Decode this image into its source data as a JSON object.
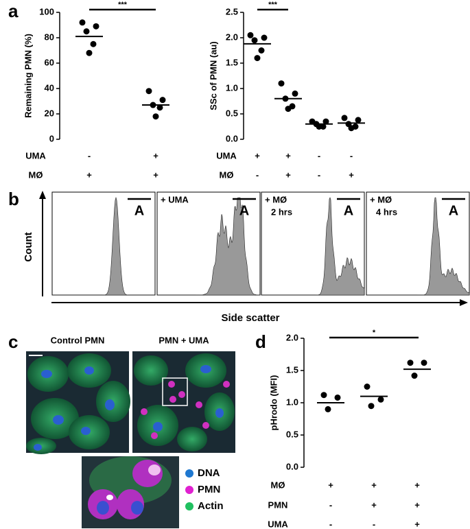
{
  "panel_labels": [
    "a",
    "b",
    "c",
    "d"
  ],
  "chart_data": [
    {
      "type": "dot",
      "y_label": "Remaining PMN (%)",
      "ylim": [
        0,
        100
      ],
      "yticks": [
        0,
        20,
        40,
        60,
        80,
        100
      ],
      "groups": [
        [
          92,
          89,
          85,
          75,
          68
        ],
        [
          38,
          31,
          27,
          25,
          18
        ]
      ],
      "means": [
        81,
        27
      ],
      "color": "#000000",
      "significance": "***",
      "conditions": [
        {
          "name": "UMA",
          "values": [
            "-",
            "+"
          ]
        },
        {
          "name": "MØ",
          "values": [
            "+",
            "+"
          ]
        }
      ]
    },
    {
      "type": "dot",
      "y_label": "SSc of PMN (au)",
      "ylim": [
        0,
        2.5
      ],
      "yticks": [
        {
          "value": 0,
          "label": "0.0"
        },
        0.5,
        {
          "value": 1,
          "label": "1.0"
        },
        1.5,
        {
          "value": 2,
          "label": "2.0"
        },
        2.5
      ],
      "groups": [
        [
          2.05,
          2.0,
          1.95,
          1.75,
          1.6
        ],
        [
          1.1,
          0.9,
          0.8,
          0.65,
          0.6
        ],
        [
          0.35,
          0.35,
          0.3,
          0.25,
          0.25
        ],
        [
          0.42,
          0.38,
          0.3,
          0.25,
          0.22
        ]
      ],
      "means": [
        1.88,
        0.8,
        0.3,
        0.32
      ],
      "color": "#000000",
      "significance": "***",
      "conditions": [
        {
          "name": "UMA",
          "values": [
            "+",
            "+",
            "-",
            "-"
          ]
        },
        {
          "name": "MØ",
          "values": [
            "-",
            "+",
            "-",
            "+"
          ]
        }
      ]
    },
    {
      "type": "dot",
      "y_label": "pHrodo (MFI)",
      "ylim": [
        0,
        2
      ],
      "yticks": [
        {
          "value": 0,
          "label": "0.0"
        },
        0.5,
        {
          "value": 1,
          "label": "1.0"
        },
        1.5,
        {
          "value": 2,
          "label": "2.0"
        }
      ],
      "groups": [
        [
          1.12,
          1.08,
          0.9
        ],
        [
          1.25,
          1.05,
          0.95
        ],
        [
          1.62,
          1.62,
          1.42
        ]
      ],
      "means": [
        1.0,
        1.1,
        1.52
      ],
      "color": "#000000",
      "significance": "*",
      "conditions": [
        {
          "name": "MØ",
          "values": [
            "+",
            "+",
            "+"
          ]
        },
        {
          "name": "PMN",
          "values": [
            "-",
            "+",
            "+"
          ]
        },
        {
          "name": "UMA",
          "values": [
            "-",
            "-",
            "+"
          ]
        }
      ]
    }
  ],
  "panel_b": {
    "y_label": "Count",
    "x_label": "Side scatter",
    "panels": [
      {
        "gate": "A"
      },
      {
        "title": "+ UMA",
        "gate": "A"
      },
      {
        "title": "+ MØ",
        "subtitle": "2 hrs",
        "gate": "A"
      },
      {
        "title": "+ MØ",
        "subtitle": "4 hrs",
        "gate": "A"
      }
    ]
  },
  "panel_c": {
    "titles": [
      "Control PMN",
      "PMN + UMA"
    ],
    "legend": [
      {
        "name": "DNA",
        "color": "#1f78d0"
      },
      {
        "name": "PMN",
        "color": "#e020d0"
      },
      {
        "name": "Actin",
        "color": "#20c060"
      }
    ]
  }
}
